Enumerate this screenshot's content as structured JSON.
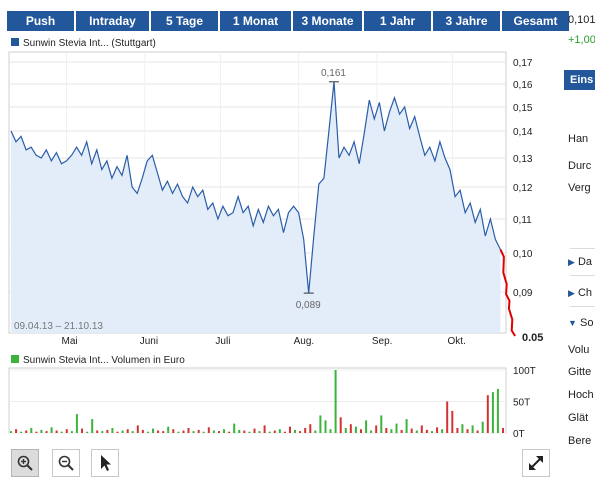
{
  "tabs": [
    "Push",
    "Intraday",
    "5 Tage",
    "1 Monat",
    "3 Monate",
    "1 Jahr",
    "3 Jahre",
    "Gesamt"
  ],
  "right_column": {
    "price": "0,101",
    "change": "+1,00",
    "section_header": "Eins",
    "labels": [
      "Han",
      "Durc",
      "Verg"
    ],
    "links": [
      "Da",
      "Ch",
      "So"
    ],
    "rows": [
      "Volu",
      "Gitte",
      "Hoch",
      "Glät",
      "Bere"
    ]
  },
  "colors": {
    "tab_bg": "#23579b",
    "line": "#2a5da8",
    "fill": "#e3edf9",
    "up_volume": "#3cb43c",
    "down_volume": "#d23232",
    "realtime": "#e00000",
    "change_positive": "#2a9d2a"
  },
  "chart_data": [
    {
      "type": "area",
      "legend": "Sunwin Stevia Int... (Stuttgart)",
      "date_range_label": "09.04.13 – 21.10.13",
      "x_tick_labels": [
        "Mai",
        "Juni",
        "Juli",
        "Aug.",
        "Sep.",
        "Okt."
      ],
      "y_tick_labels": [
        "0,17",
        "0,16",
        "0,15",
        "0,14",
        "0,13",
        "0,12",
        "0,11",
        "0,10",
        "0,09"
      ],
      "y_ticks": [
        0.17,
        0.16,
        0.15,
        0.14,
        0.13,
        0.12,
        0.11,
        0.1,
        0.09
      ],
      "last_label": "0.05",
      "annotations": [
        {
          "label": "0,161",
          "value": 0.161
        },
        {
          "label": "0,089",
          "value": 0.089
        }
      ],
      "series": [
        {
          "x": [
            "2013-04-09",
            "2013-04-11",
            "2013-04-13",
            "2013-04-15",
            "2013-04-17",
            "2013-04-19",
            "2013-04-21",
            "2013-04-23",
            "2013-04-25",
            "2013-04-27",
            "2013-04-29",
            "2013-05-01",
            "2013-05-03",
            "2013-05-05",
            "2013-05-07",
            "2013-05-09",
            "2013-05-11",
            "2013-05-13",
            "2013-05-15",
            "2013-05-17",
            "2013-05-19",
            "2013-05-21",
            "2013-05-23",
            "2013-05-25",
            "2013-05-27",
            "2013-05-29",
            "2013-05-31",
            "2013-06-02",
            "2013-06-04",
            "2013-06-06",
            "2013-06-08",
            "2013-06-10",
            "2013-06-12",
            "2013-06-14",
            "2013-06-16",
            "2013-06-18",
            "2013-06-20",
            "2013-06-22",
            "2013-06-24",
            "2013-06-26",
            "2013-06-28",
            "2013-06-30",
            "2013-07-02",
            "2013-07-04",
            "2013-07-06",
            "2013-07-08",
            "2013-07-10",
            "2013-07-12",
            "2013-07-14",
            "2013-07-16",
            "2013-07-18",
            "2013-07-20",
            "2013-07-22",
            "2013-07-24",
            "2013-07-26",
            "2013-07-28",
            "2013-07-30",
            "2013-08-01",
            "2013-08-03",
            "2013-08-05",
            "2013-08-07",
            "2013-08-09",
            "2013-08-11",
            "2013-08-13",
            "2013-08-15",
            "2013-08-17",
            "2013-08-19",
            "2013-08-21",
            "2013-08-23",
            "2013-08-25",
            "2013-08-27",
            "2013-08-29",
            "2013-08-31",
            "2013-09-02",
            "2013-09-04",
            "2013-09-06",
            "2013-09-08",
            "2013-09-10",
            "2013-09-12",
            "2013-09-14",
            "2013-09-16",
            "2013-09-18",
            "2013-09-20",
            "2013-09-22",
            "2013-09-24",
            "2013-09-26",
            "2013-09-28",
            "2013-09-30",
            "2013-10-02",
            "2013-10-04",
            "2013-10-06",
            "2013-10-08",
            "2013-10-10",
            "2013-10-12",
            "2013-10-14",
            "2013-10-16",
            "2013-10-18",
            "2013-10-20"
          ],
          "values": [
            0.14,
            0.136,
            0.138,
            0.133,
            0.134,
            0.131,
            0.13,
            0.133,
            0.129,
            0.132,
            0.128,
            0.129,
            0.131,
            0.134,
            0.131,
            0.136,
            0.128,
            0.133,
            0.126,
            0.129,
            0.123,
            0.127,
            0.124,
            0.131,
            0.12,
            0.118,
            0.123,
            0.129,
            0.131,
            0.125,
            0.119,
            0.122,
            0.118,
            0.121,
            0.117,
            0.115,
            0.12,
            0.117,
            0.119,
            0.113,
            0.115,
            0.11,
            0.114,
            0.111,
            0.112,
            0.117,
            0.112,
            0.114,
            0.108,
            0.113,
            0.109,
            0.114,
            0.111,
            0.113,
            0.106,
            0.112,
            0.114,
            0.112,
            0.104,
            0.089,
            0.105,
            0.121,
            0.123,
            0.14,
            0.161,
            0.13,
            0.134,
            0.131,
            0.136,
            0.128,
            0.139,
            0.153,
            0.145,
            0.152,
            0.14,
            0.148,
            0.154,
            0.147,
            0.15,
            0.141,
            0.146,
            0.138,
            0.131,
            0.134,
            0.129,
            0.136,
            0.13,
            0.126,
            0.117,
            0.119,
            0.112,
            0.115,
            0.109,
            0.113,
            0.105,
            0.11,
            0.104,
            0.101
          ],
          "realtime_values": [
            0.101,
            0.099,
            0.095,
            0.092,
            0.088,
            0.082,
            0.075,
            0.065,
            0.055,
            0.05
          ]
        }
      ],
      "ylim": [
        0.05,
        0.17
      ]
    },
    {
      "type": "bar",
      "legend": "Sunwin Stevia Int... Volumen in Euro",
      "y_tick_labels": [
        "100T",
        "50T",
        "0T"
      ],
      "y_ticks": [
        100000,
        50000,
        0
      ],
      "ylim": [
        0,
        100000
      ],
      "series": [
        {
          "name": "Volumen",
          "values": [
            3000,
            6000,
            2000,
            4000,
            8000,
            2000,
            5000,
            3000,
            9000,
            4000,
            2000,
            6000,
            3000,
            30000,
            7000,
            2000,
            22000,
            4000,
            3000,
            5000,
            8000,
            2000,
            4000,
            6000,
            3000,
            12000,
            5000,
            2000,
            7000,
            4000,
            3000,
            10000,
            6000,
            2000,
            4000,
            8000,
            3000,
            5000,
            2000,
            9000,
            4000,
            3000,
            6000,
            2000,
            15000,
            5000,
            4000,
            2000,
            7000,
            3000,
            12000,
            2000,
            4000,
            6000,
            2000,
            10000,
            5000,
            3000,
            8000,
            14000,
            4000,
            28000,
            20000,
            6000,
            100000,
            25000,
            8000,
            14000,
            10000,
            6000,
            20000,
            4000,
            12000,
            28000,
            8000,
            6000,
            15000,
            5000,
            22000,
            7000,
            4000,
            12000,
            5000,
            3000,
            9000,
            6000,
            50000,
            35000,
            8000,
            14000,
            6000,
            12000,
            4000,
            18000,
            60000,
            65000,
            70000,
            8000
          ],
          "up": [
            1,
            0,
            1,
            0,
            1,
            0,
            1,
            0,
            1,
            0,
            1,
            0,
            1,
            1,
            0,
            1,
            1,
            0,
            1,
            0,
            1,
            0,
            1,
            0,
            1,
            0,
            0,
            1,
            1,
            0,
            0,
            1,
            0,
            1,
            0,
            0,
            1,
            0,
            1,
            0,
            1,
            0,
            1,
            0,
            1,
            1,
            0,
            1,
            0,
            1,
            0,
            1,
            0,
            1,
            0,
            0,
            1,
            0,
            0,
            0,
            1,
            1,
            1,
            1,
            1,
            0,
            1,
            0,
            1,
            0,
            1,
            1,
            0,
            1,
            0,
            1,
            1,
            0,
            1,
            0,
            1,
            0,
            0,
            1,
            0,
            1,
            0,
            0,
            0,
            1,
            0,
            1,
            0,
            1,
            0,
            1,
            1,
            0
          ]
        }
      ]
    }
  ],
  "tools": [
    "zoom-in",
    "zoom-out",
    "pointer",
    "fullscreen"
  ]
}
